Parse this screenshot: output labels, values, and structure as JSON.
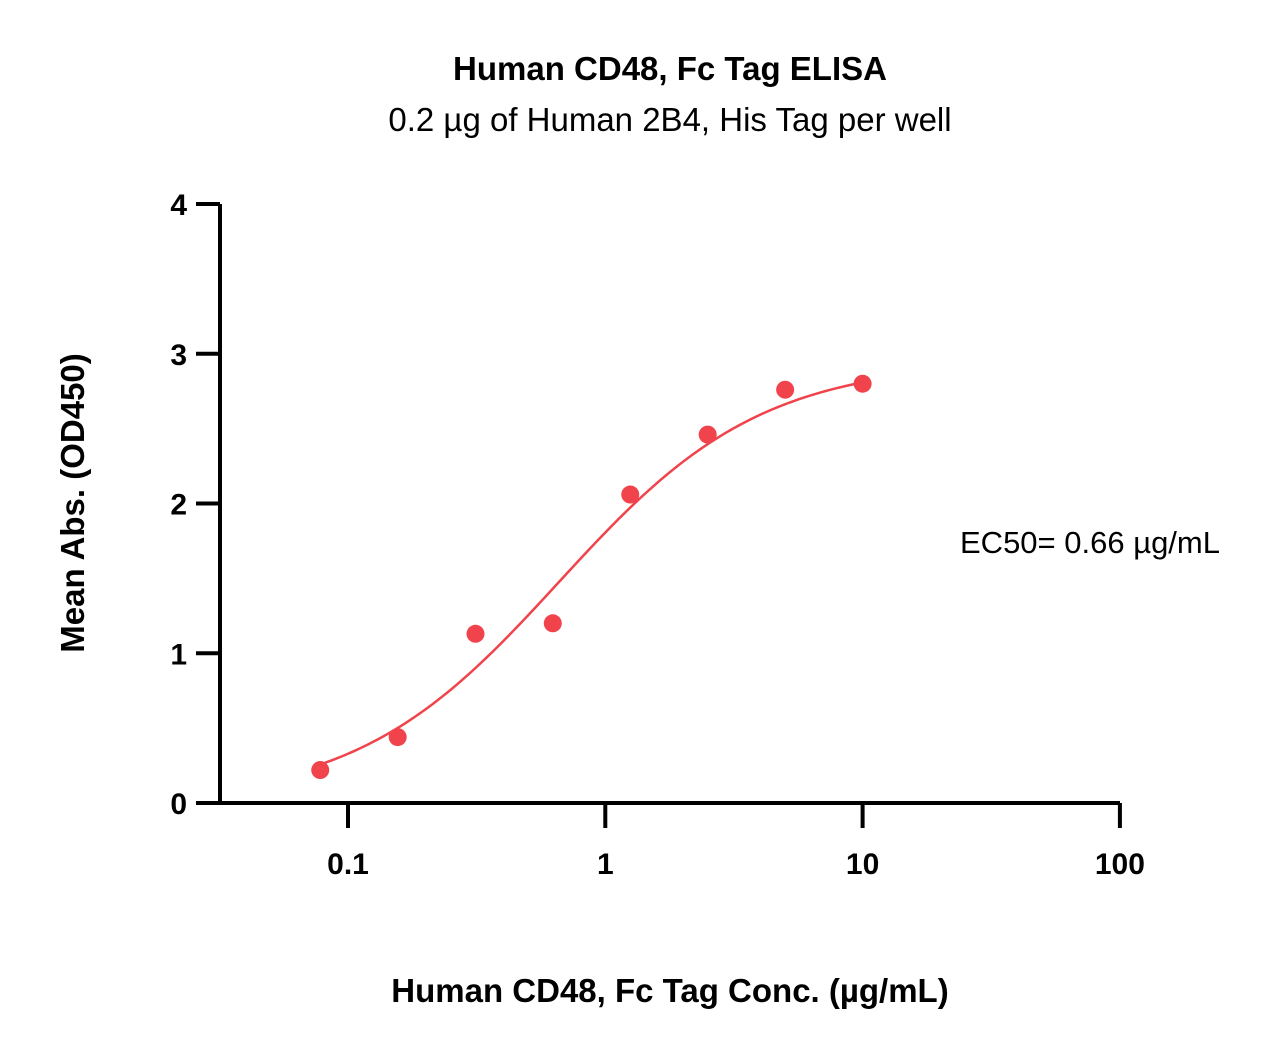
{
  "chart_data": {
    "type": "scatter",
    "title": "Human CD48, Fc Tag ELISA",
    "subtitle": "0.2 µg of Human 2B4, His Tag per well",
    "xlabel": "Human CD48, Fc Tag Conc. (µg/mL)",
    "ylabel": "Mean Abs. (OD450)",
    "x_scale": "log",
    "xlim": [
      0.03,
      100
    ],
    "ylim": [
      0,
      4
    ],
    "x_ticks": [
      0.1,
      1,
      10,
      100
    ],
    "x_tick_labels": [
      "0.1",
      "1",
      "10",
      "100"
    ],
    "y_ticks": [
      0,
      1,
      2,
      3,
      4
    ],
    "y_tick_labels": [
      "0",
      "1",
      "2",
      "3",
      "4"
    ],
    "grid": false,
    "color": "#f0434b",
    "series": [
      {
        "x": [
          0.078,
          0.156,
          0.313,
          0.625,
          1.25,
          2.5,
          5,
          10
        ],
        "y": [
          0.22,
          0.44,
          1.13,
          1.2,
          2.06,
          2.46,
          2.76,
          2.8
        ]
      }
    ],
    "fit": {
      "type": "4PL",
      "bottom": 0.0,
      "top": 2.95,
      "ec50": 0.66,
      "hill": 1.1,
      "x_range": [
        0.078,
        10
      ]
    },
    "annotation": "EC50= 0.66 µg/mL"
  }
}
